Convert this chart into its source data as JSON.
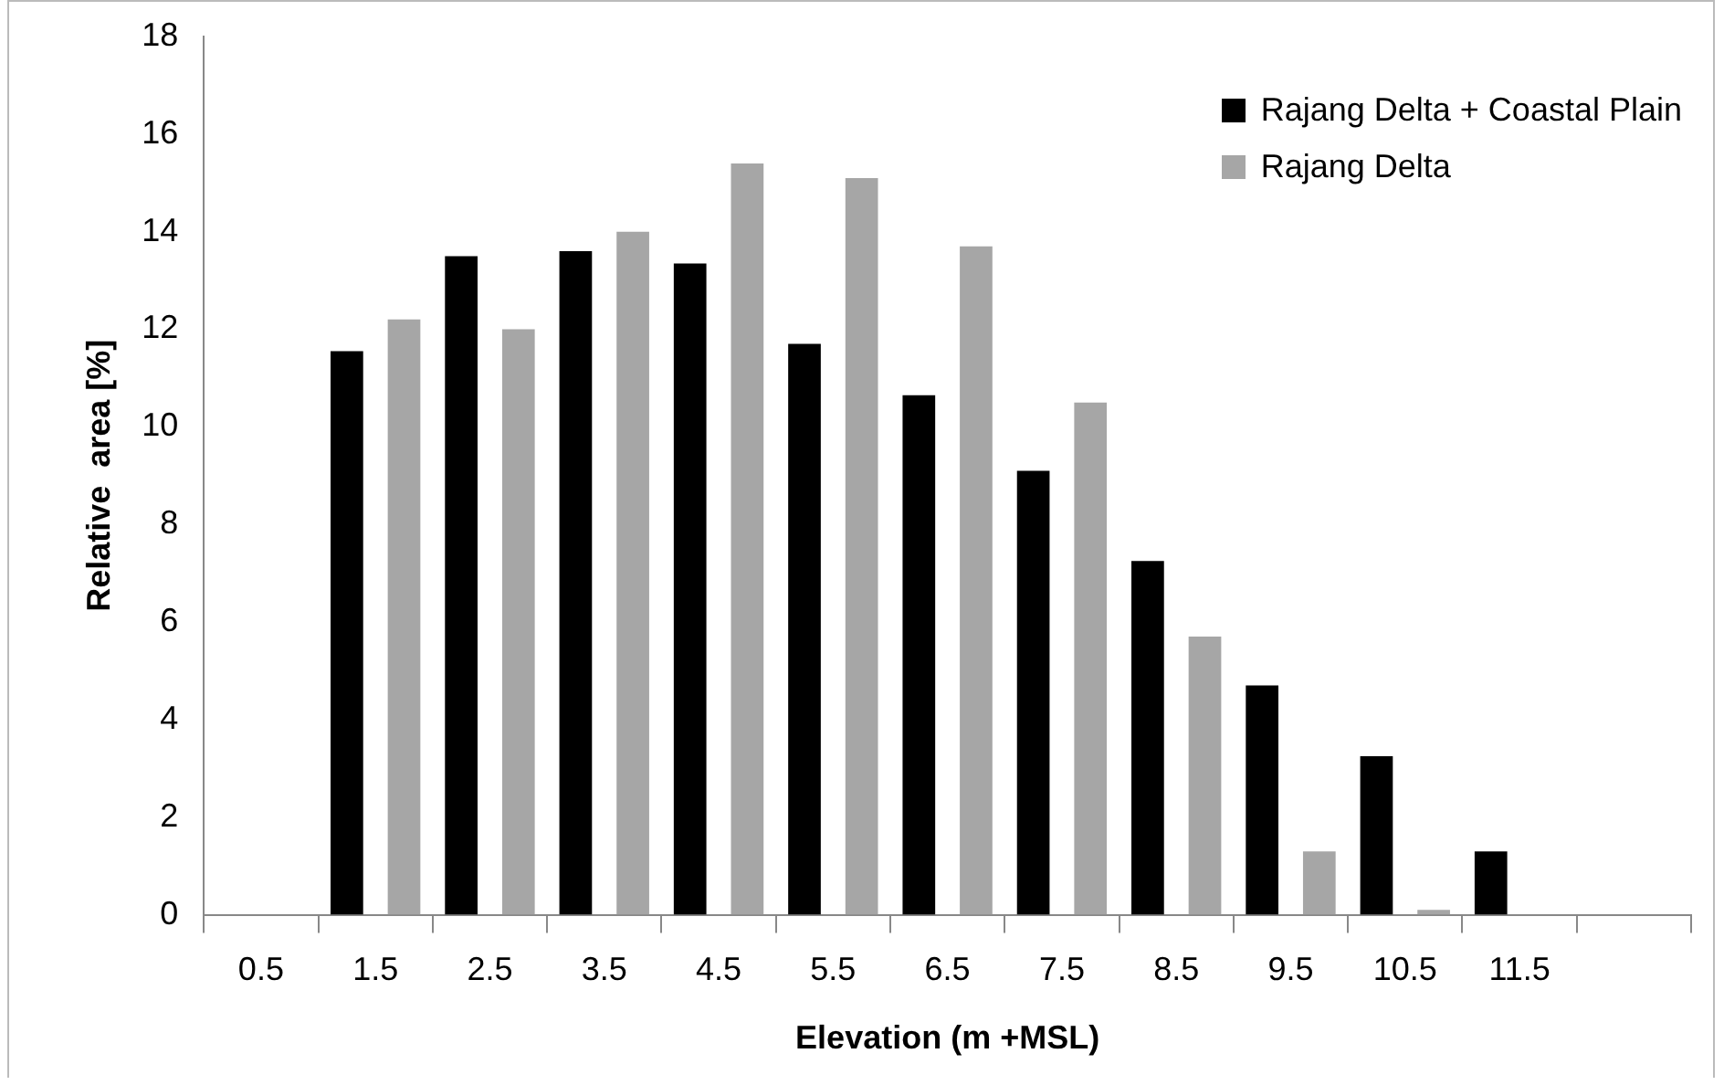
{
  "chart_data": {
    "type": "bar",
    "xlabel": "Elevation (m +MSL)",
    "ylabel": "Relative  area [%]",
    "categories": [
      "0.5",
      "1.5",
      "2.5",
      "3.5",
      "4.5",
      "5.5",
      "6.5",
      "7.5",
      "8.5",
      "9.5",
      "10.5",
      "11.5",
      null
    ],
    "series": [
      {
        "name": "Rajang Delta + Coastal Plain",
        "color": "#000000",
        "values": [
          0,
          11.55,
          13.5,
          13.6,
          13.35,
          11.7,
          10.65,
          9.1,
          7.25,
          4.7,
          3.25,
          1.3,
          null
        ]
      },
      {
        "name": "Rajang Delta",
        "color": "#a6a6a6",
        "values": [
          0,
          12.2,
          12.0,
          14.0,
          15.4,
          15.1,
          13.7,
          10.5,
          5.7,
          1.3,
          0.1,
          0,
          null
        ]
      }
    ],
    "ylim": [
      0,
      18
    ],
    "yticks": [
      0,
      2,
      4,
      6,
      8,
      10,
      12,
      14,
      16,
      18
    ],
    "grid": false,
    "legend": "top right"
  }
}
